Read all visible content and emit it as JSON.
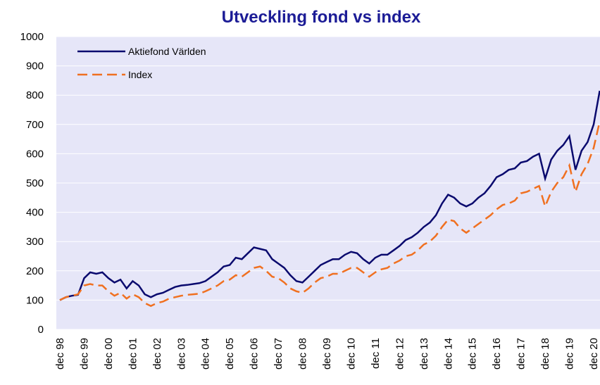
{
  "chart_data": {
    "type": "line",
    "title": "Utveckling fond vs index",
    "categories": [
      "dec 98",
      null,
      null,
      null,
      "dec 99",
      null,
      null,
      null,
      "dec 00",
      null,
      null,
      null,
      "dec 01",
      null,
      null,
      null,
      "dec 02",
      null,
      null,
      null,
      "dec 03",
      null,
      null,
      null,
      "dec 04",
      null,
      null,
      null,
      "dec 05",
      null,
      null,
      null,
      "dec 06",
      null,
      null,
      null,
      "dec 07",
      null,
      null,
      null,
      "dec 08",
      null,
      null,
      null,
      "dec 09",
      null,
      null,
      null,
      "dec 10",
      null,
      null,
      null,
      "dec 11",
      null,
      null,
      null,
      "dec 12",
      null,
      null,
      null,
      "dec 13",
      null,
      null,
      null,
      "dec 14",
      null,
      null,
      null,
      "dec 15",
      null,
      null,
      null,
      "dec 16",
      null,
      null,
      null,
      "dec 17",
      null,
      null,
      null,
      "dec 18",
      null,
      null,
      null,
      "dec 19",
      null,
      null,
      null,
      "dec 20",
      null
    ],
    "series": [
      {
        "name": "Aktiefond Världen",
        "color": "#0a0a6e",
        "dash": false,
        "values": [
          100,
          110,
          115,
          118,
          175,
          195,
          190,
          195,
          175,
          160,
          170,
          140,
          165,
          150,
          120,
          110,
          120,
          125,
          135,
          145,
          150,
          152,
          155,
          158,
          165,
          180,
          195,
          215,
          220,
          245,
          240,
          260,
          280,
          275,
          270,
          240,
          225,
          210,
          185,
          165,
          160,
          180,
          200,
          220,
          230,
          240,
          240,
          255,
          265,
          260,
          240,
          225,
          245,
          255,
          255,
          270,
          285,
          305,
          315,
          330,
          350,
          365,
          390,
          430,
          460,
          450,
          430,
          420,
          430,
          450,
          465,
          490,
          520,
          530,
          545,
          550,
          570,
          575,
          590,
          600,
          515,
          580,
          610,
          630,
          660,
          545,
          610,
          640,
          700,
          815
        ]
      },
      {
        "name": "Index",
        "color": "#f07020",
        "dash": true,
        "values": [
          100,
          110,
          115,
          120,
          150,
          155,
          150,
          150,
          130,
          115,
          125,
          105,
          120,
          110,
          90,
          80,
          90,
          95,
          105,
          110,
          115,
          118,
          120,
          122,
          130,
          140,
          150,
          165,
          170,
          185,
          180,
          195,
          210,
          215,
          200,
          180,
          175,
          160,
          140,
          130,
          125,
          140,
          160,
          175,
          180,
          190,
          190,
          200,
          210,
          210,
          195,
          180,
          195,
          205,
          210,
          225,
          235,
          250,
          255,
          270,
          290,
          300,
          320,
          350,
          375,
          370,
          345,
          330,
          345,
          360,
          375,
          390,
          410,
          425,
          430,
          440,
          465,
          470,
          480,
          490,
          420,
          470,
          500,
          520,
          560,
          470,
          530,
          565,
          620,
          710
        ]
      }
    ],
    "ylim": [
      0,
      1000
    ],
    "yticks": [
      0,
      100,
      200,
      300,
      400,
      500,
      600,
      700,
      800,
      900,
      1000
    ],
    "grid": true,
    "legend": "upper left"
  }
}
